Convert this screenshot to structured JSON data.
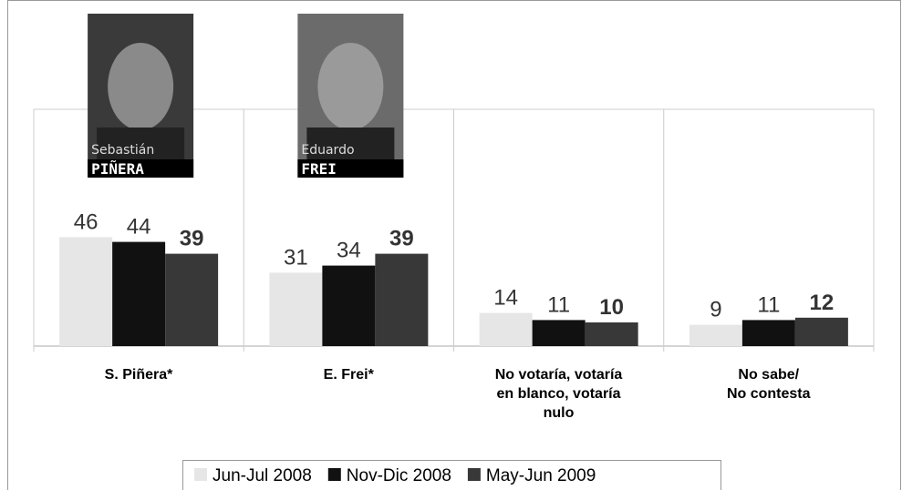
{
  "chart_data": {
    "type": "bar",
    "categories": [
      "S. Piñera*",
      "E. Frei*",
      "No votaría, votaría\nen blanco, votaría\nnulo",
      "No sabe/\nNo contesta"
    ],
    "series": [
      {
        "name": "Jun-Jul 2008",
        "color": "#e6e6e6",
        "values": [
          46,
          31,
          14,
          9
        ],
        "label_weight": "normal"
      },
      {
        "name": "Nov-Dic 2008",
        "color": "#111111",
        "values": [
          44,
          34,
          11,
          11
        ],
        "label_weight": "normal"
      },
      {
        "name": "May-Jun 2009",
        "color": "#383838",
        "values": [
          39,
          39,
          10,
          12
        ],
        "label_weight": "bold"
      }
    ],
    "ylim": [
      0,
      100
    ],
    "photos": [
      {
        "first": "Sebastián",
        "last": "PIÑERA"
      },
      {
        "first": "Eduardo",
        "last": "FREI"
      }
    ],
    "legend": "bottom"
  }
}
